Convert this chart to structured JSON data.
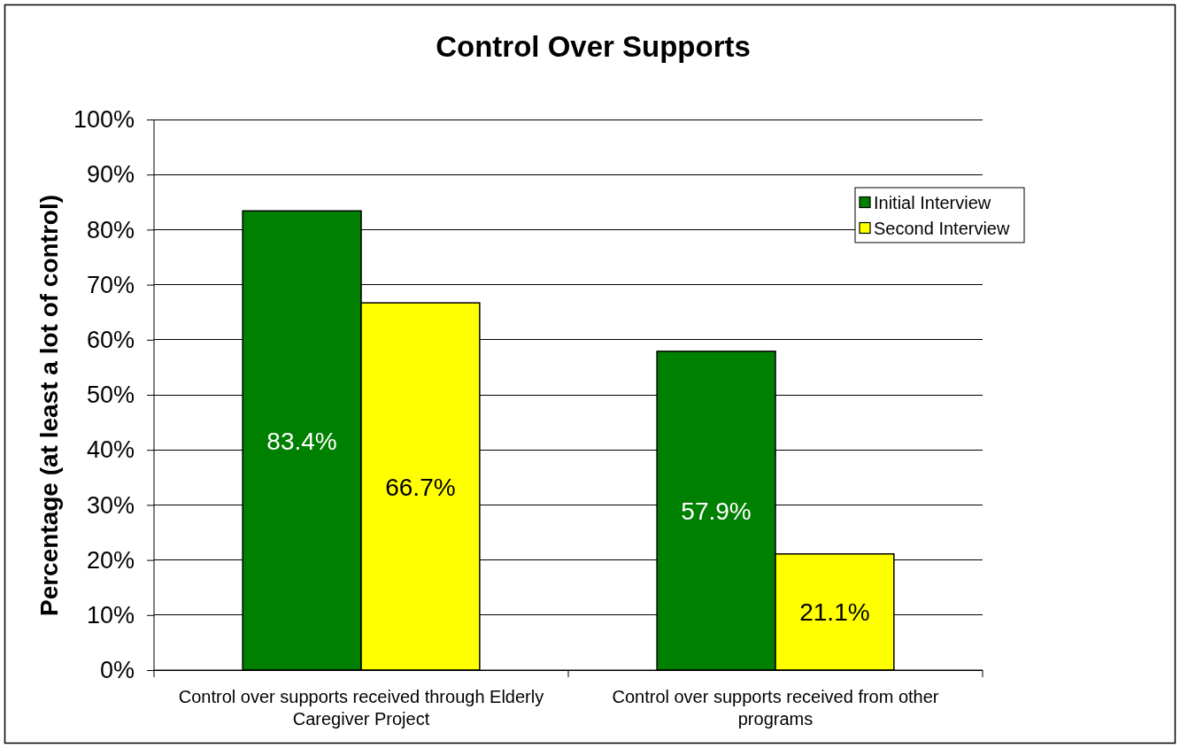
{
  "chart_data": {
    "type": "bar",
    "title": "Control Over Supports",
    "ylabel": "Percentage (at least a lot of control)",
    "categories": [
      "Control over supports received through Elderly Caregiver Project",
      "Control over supports received from other programs"
    ],
    "series": [
      {
        "name": "Initial Interview",
        "color": "#008000",
        "values": [
          83.4,
          57.9
        ],
        "value_labels": [
          "83.4%",
          "57.9%"
        ]
      },
      {
        "name": "Second Interview",
        "color": "#ffff00",
        "values": [
          66.7,
          21.1
        ],
        "value_labels": [
          "66.7%",
          "21.1%"
        ]
      }
    ],
    "ylim": [
      0,
      100
    ],
    "yticks": [
      {
        "value": 0,
        "label": "0%"
      },
      {
        "value": 10,
        "label": "10%"
      },
      {
        "value": 20,
        "label": "20%"
      },
      {
        "value": 30,
        "label": "30%"
      },
      {
        "value": 40,
        "label": "40%"
      },
      {
        "value": 50,
        "label": "50%"
      },
      {
        "value": 60,
        "label": "60%"
      },
      {
        "value": 70,
        "label": "70%"
      },
      {
        "value": 80,
        "label": "80%"
      },
      {
        "value": 90,
        "label": "90%"
      },
      {
        "value": 100,
        "label": "100%"
      }
    ],
    "grid": "y",
    "legend": "top right"
  }
}
